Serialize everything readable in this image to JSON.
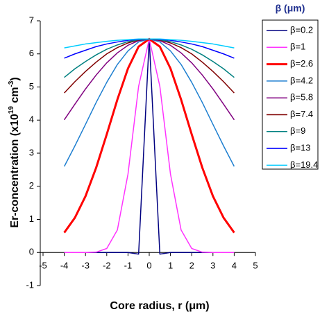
{
  "chart_data": {
    "type": "line",
    "y_label_parts": [
      "Er-concentration (x10",
      "19",
      " cm",
      "-3",
      ")"
    ],
    "x_label": "Core radius, r (μm)",
    "legend_title": "β (μm)",
    "legend_position": "right",
    "x": [
      -4,
      -3.5,
      -3,
      -2.5,
      -2,
      -1.5,
      -1,
      -0.5,
      0,
      0.5,
      1,
      1.5,
      2,
      2.5,
      3,
      3.5,
      4
    ],
    "xlim": [
      -5,
      5
    ],
    "xticks": [
      -5,
      -4,
      -3,
      -2,
      -1,
      0,
      1,
      2,
      3,
      4,
      5
    ],
    "ylim": [
      -1,
      7
    ],
    "yticks": [
      -1,
      0,
      1,
      2,
      3,
      4,
      5,
      6,
      7
    ],
    "series": [
      {
        "name": "β=0.2",
        "color": "#000080",
        "values": [
          0,
          0,
          0,
          0,
          0,
          0,
          0,
          -0.05,
          6.45,
          -0.05,
          0,
          0,
          0,
          0,
          0,
          0,
          0
        ]
      },
      {
        "name": "β=1",
        "color": "#ff33ff",
        "values": [
          0,
          0,
          0,
          0.01,
          0.12,
          0.68,
          2.37,
          5.02,
          6.45,
          5.02,
          2.37,
          0.68,
          0.12,
          0.01,
          0,
          0,
          0
        ]
      },
      {
        "name": "β=2.6",
        "color": "#ff0000",
        "values": [
          0.6,
          1.05,
          1.7,
          2.56,
          3.57,
          4.62,
          5.56,
          6.22,
          6.45,
          6.22,
          5.56,
          4.62,
          3.57,
          2.56,
          1.7,
          1.05,
          0.6
        ]
      },
      {
        "name": "β=4.2",
        "color": "#1e7fd0",
        "values": [
          2.6,
          3.22,
          3.87,
          4.53,
          5.14,
          5.68,
          6.09,
          6.36,
          6.45,
          6.36,
          6.09,
          5.68,
          5.14,
          4.53,
          3.87,
          3.22,
          2.6
        ]
      },
      {
        "name": "β=5.8",
        "color": "#800080",
        "values": [
          4.01,
          4.48,
          4.94,
          5.36,
          5.73,
          6.03,
          6.26,
          6.4,
          6.45,
          6.4,
          6.26,
          6.03,
          5.73,
          5.36,
          4.94,
          4.48,
          4.01
        ]
      },
      {
        "name": "β=7.4",
        "color": "#800000",
        "values": [
          4.82,
          5.16,
          5.47,
          5.75,
          6.0,
          6.19,
          6.33,
          6.42,
          6.45,
          6.42,
          6.33,
          6.19,
          6.0,
          5.75,
          5.47,
          5.16,
          4.82
        ]
      },
      {
        "name": "β=9",
        "color": "#008080",
        "values": [
          5.29,
          5.55,
          5.77,
          5.97,
          6.14,
          6.27,
          6.37,
          6.43,
          6.45,
          6.43,
          6.37,
          6.27,
          6.14,
          5.97,
          5.77,
          5.55,
          5.29
        ]
      },
      {
        "name": "β=13",
        "color": "#0000ff",
        "values": [
          5.87,
          6.0,
          6.11,
          6.22,
          6.3,
          6.36,
          6.41,
          6.44,
          6.45,
          6.44,
          6.41,
          6.36,
          6.3,
          6.22,
          6.11,
          6.0,
          5.87
        ]
      },
      {
        "name": "β=19.4",
        "color": "#00ccff",
        "values": [
          6.18,
          6.24,
          6.3,
          6.34,
          6.38,
          6.41,
          6.43,
          6.45,
          6.45,
          6.45,
          6.43,
          6.41,
          6.38,
          6.34,
          6.3,
          6.24,
          6.18
        ]
      }
    ]
  }
}
